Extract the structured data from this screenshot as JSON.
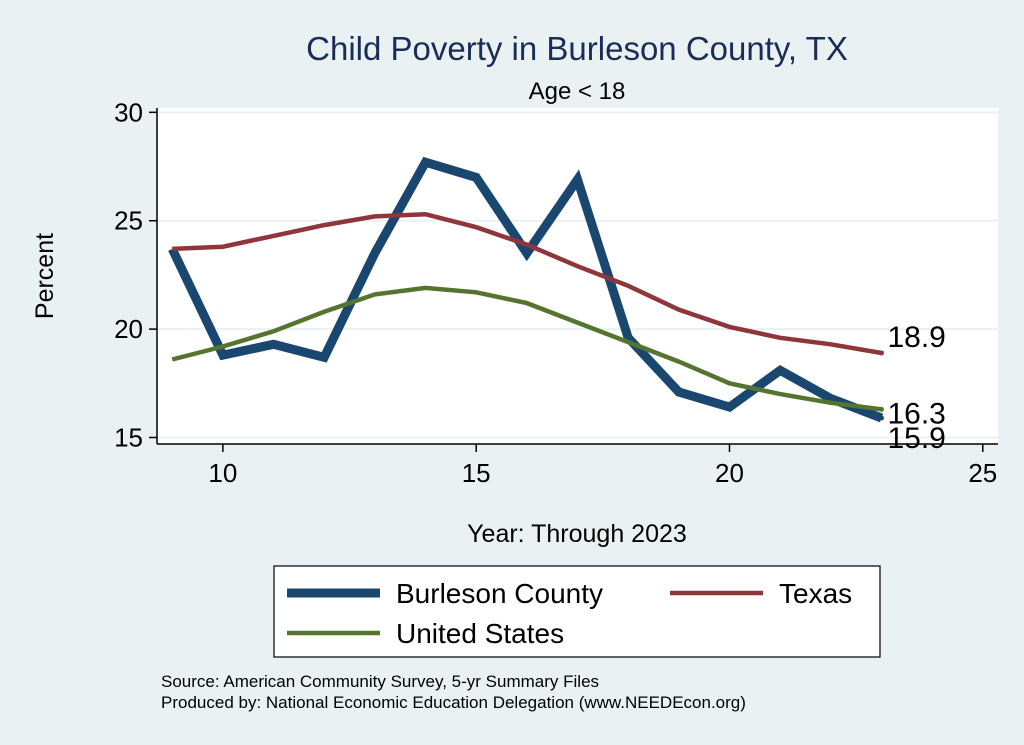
{
  "chart_data": {
    "type": "line",
    "title": "Child Poverty in Burleson County, TX",
    "subtitle": "Age < 18",
    "xlabel": "Year: Through 2023",
    "ylabel": "Percent",
    "xlim": [
      8.7,
      25.3
    ],
    "ylim": [
      14.7,
      30.2
    ],
    "x_ticks": [
      10,
      15,
      20,
      25
    ],
    "y_ticks": [
      15,
      20,
      25,
      30
    ],
    "grid": true,
    "legend_position": "bottom",
    "x": [
      9,
      10,
      11,
      12,
      13,
      14,
      15,
      16,
      17,
      18,
      19,
      20,
      21,
      22,
      23
    ],
    "series": [
      {
        "name": "Burleson County",
        "color": "#1a476f",
        "values": [
          23.7,
          18.8,
          19.3,
          18.7,
          23.5,
          27.7,
          27.0,
          23.5,
          26.9,
          19.6,
          17.1,
          16.4,
          18.1,
          16.8,
          15.9
        ],
        "end_label": "15.9"
      },
      {
        "name": "Texas",
        "color": "#90353b",
        "values": [
          23.7,
          23.8,
          24.3,
          24.8,
          25.2,
          25.3,
          24.7,
          23.9,
          22.9,
          22.0,
          20.9,
          20.1,
          19.6,
          19.3,
          18.9
        ],
        "end_label": "18.9"
      },
      {
        "name": "United States",
        "color": "#55752f",
        "values": [
          18.6,
          19.2,
          19.9,
          20.8,
          21.6,
          21.9,
          21.7,
          21.2,
          20.3,
          19.4,
          18.5,
          17.5,
          17.0,
          16.6,
          16.3
        ],
        "end_label": "16.3"
      }
    ]
  },
  "footer": {
    "source": "Source: American Community Survey, 5-yr Summary Files",
    "produced_by": "Produced by: National Economic Education Delegation (www.NEEDEcon.org)"
  }
}
